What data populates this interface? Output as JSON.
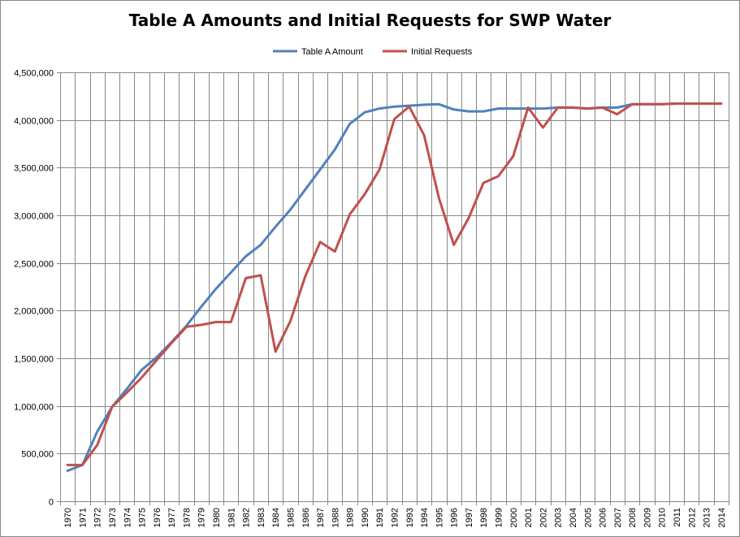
{
  "chart_data": {
    "type": "line",
    "title": "Table A Amounts and Initial Requests for SWP Water",
    "xlabel": "",
    "ylabel": "",
    "ylim": [
      0,
      4500000
    ],
    "ytick_step": 500000,
    "ytick_labels": [
      "0",
      "500,000",
      "1,000,000",
      "1,500,000",
      "2,000,000",
      "2,500,000",
      "3,000,000",
      "3,500,000",
      "4,000,000",
      "4,500,000"
    ],
    "grid": true,
    "legend_position": "top",
    "x": [
      "1970",
      "1971",
      "1972",
      "1973",
      "1974",
      "1975",
      "1976",
      "1977",
      "1978",
      "1979",
      "1980",
      "1981",
      "1982",
      "1983",
      "1984",
      "1985",
      "1986",
      "1987",
      "1988",
      "1989",
      "1990",
      "1991",
      "1992",
      "1993",
      "1994",
      "1995",
      "1996",
      "1997",
      "1998",
      "1999",
      "2000",
      "2001",
      "2002",
      "2003",
      "2004",
      "2005",
      "2006",
      "2007",
      "2008",
      "2009",
      "2010",
      "2011",
      "2012",
      "2013",
      "2014"
    ],
    "series": [
      {
        "name": "Table A Amount",
        "color": "#4f81bd",
        "values": [
          320000,
          380000,
          730000,
          990000,
          1180000,
          1380000,
          1510000,
          1670000,
          1840000,
          2040000,
          2230000,
          2400000,
          2570000,
          2690000,
          2880000,
          3060000,
          3270000,
          3480000,
          3690000,
          3960000,
          4080000,
          4120000,
          4140000,
          4150000,
          4160000,
          4165000,
          4110000,
          4090000,
          4090000,
          4120000,
          4120000,
          4120000,
          4120000,
          4130000,
          4130000,
          4120000,
          4130000,
          4130000,
          4165000,
          4165000,
          4165000,
          4172000,
          4172000,
          4172000,
          4172000
        ]
      },
      {
        "name": "Initial Requests",
        "color": "#c0504d",
        "values": [
          380000,
          380000,
          590000,
          990000,
          1140000,
          1300000,
          1480000,
          1660000,
          1830000,
          1850000,
          1880000,
          1880000,
          2340000,
          2370000,
          1570000,
          1890000,
          2360000,
          2720000,
          2620000,
          3010000,
          3220000,
          3480000,
          4010000,
          4140000,
          3840000,
          3180000,
          2690000,
          2970000,
          3340000,
          3410000,
          3620000,
          4130000,
          3920000,
          4130000,
          4130000,
          4120000,
          4130000,
          4060000,
          4165000,
          4165000,
          4165000,
          4172000,
          4172000,
          4172000,
          4172000
        ]
      }
    ]
  }
}
